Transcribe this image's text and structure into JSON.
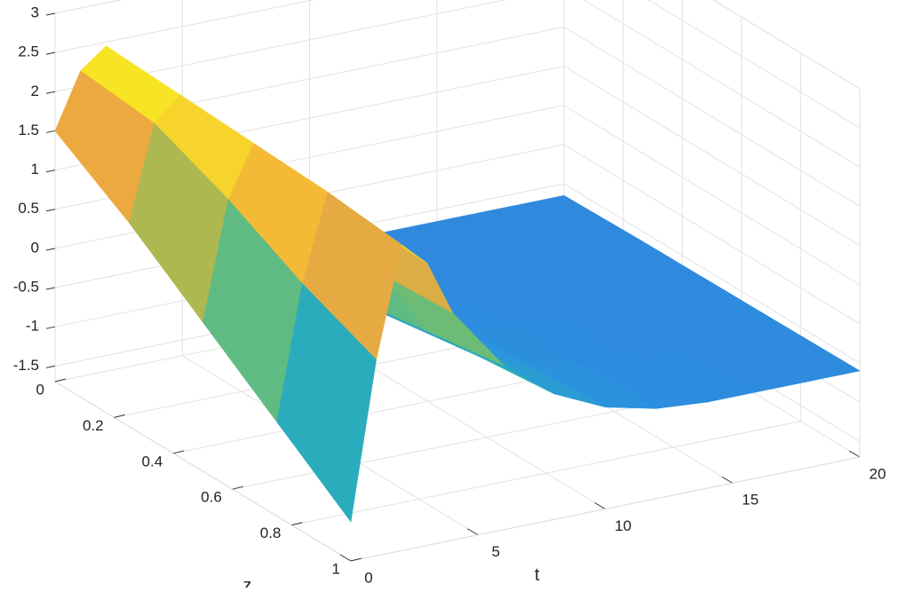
{
  "chart_data": {
    "type": "surface",
    "xlabel": "t",
    "ylabel": "z",
    "x": [
      0,
      1,
      2,
      3,
      4,
      6,
      8,
      10,
      12,
      14,
      16,
      18,
      20
    ],
    "y": [
      0,
      0.25,
      0.5,
      0.75,
      1
    ],
    "values": [
      [
        1.5,
        2.2,
        2.45,
        2.0,
        1.0,
        -0.3,
        -0.6,
        -0.65,
        -0.65,
        -0.65,
        -0.65,
        -0.65,
        -0.65
      ],
      [
        0.9,
        2.1,
        2.4,
        2.0,
        1.05,
        -0.1,
        -0.5,
        -0.6,
        -0.62,
        -0.63,
        -0.63,
        -0.63,
        -0.63
      ],
      [
        0.2,
        1.7,
        2.35,
        1.95,
        1.1,
        0.1,
        -0.35,
        -0.55,
        -0.6,
        -0.62,
        -0.62,
        -0.62,
        -0.62
      ],
      [
        -0.5,
        1.2,
        2.3,
        1.95,
        1.15,
        0.25,
        -0.2,
        -0.45,
        -0.58,
        -0.6,
        -0.61,
        -0.61,
        -0.61
      ],
      [
        -1.2,
        0.8,
        2.2,
        1.9,
        1.2,
        0.4,
        -0.1,
        -0.4,
        -0.55,
        -0.6,
        -0.6,
        -0.6,
        -0.6
      ]
    ],
    "xlim": [
      0,
      20
    ],
    "xticks": [
      0,
      5,
      10,
      15,
      20
    ],
    "ylim": [
      0,
      1
    ],
    "yticks": [
      0,
      0.2,
      0.4,
      0.6,
      0.8,
      1
    ],
    "vlim": [
      -1.7,
      3
    ],
    "vticks": [
      -1.5,
      -1,
      -0.5,
      0,
      0.5,
      1,
      1.5,
      2,
      2.5,
      3
    ],
    "grid": true,
    "colormap": [
      "#3e6ad8",
      "#2a93df",
      "#2bb5b0",
      "#8cc05a",
      "#f2a83e",
      "#f9f51c"
    ]
  }
}
